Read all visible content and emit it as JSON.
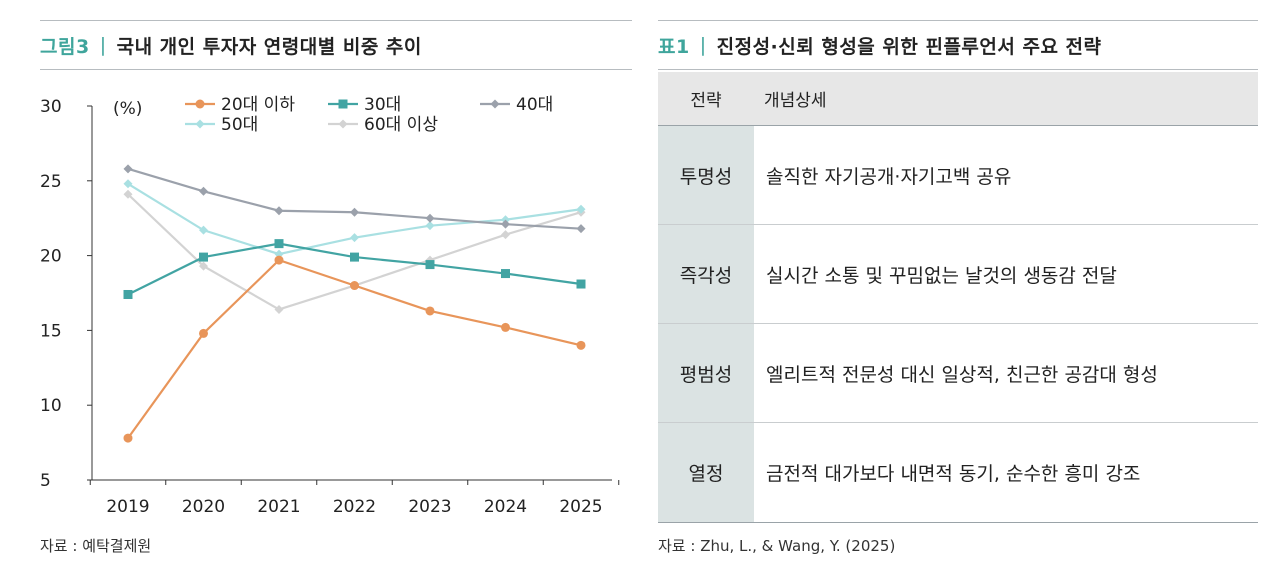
{
  "left": {
    "title_label": "그림3",
    "title_sep": "|",
    "title_text": "국내 개인 투자자 연령대별 비중 추이",
    "source": "자료 : 예탁결제원"
  },
  "right": {
    "title_label": "표1",
    "title_sep": "|",
    "title_text": "진정성·신뢰 형성을 위한 핀플루언서 주요 전략",
    "table": {
      "headers": [
        "전략",
        "개념상세"
      ],
      "rows": [
        {
          "strategy": "투명성",
          "detail": "솔직한 자기공개·자기고백 공유"
        },
        {
          "strategy": "즉각성",
          "detail": "실시간 소통 및 꾸밈없는 날것의 생동감 전달"
        },
        {
          "strategy": "평범성",
          "detail": "엘리트적 전문성 대신 일상적, 친근한 공감대 형성"
        },
        {
          "strategy": "열정",
          "detail": "금전적 대가보다 내면적 동기, 순수한 흥미 강조"
        }
      ]
    },
    "source": "자료 : Zhu, L., & Wang, Y. (2025)"
  },
  "chart_data": {
    "type": "line",
    "title": "",
    "unit_label": "(%)",
    "x": [
      "2019",
      "2020",
      "2021",
      "2022",
      "2023",
      "2024",
      "2025"
    ],
    "ylim": [
      5,
      30
    ],
    "yticks": [
      5,
      10,
      15,
      20,
      25,
      30
    ],
    "grid": false,
    "legend_position": "top",
    "series": [
      {
        "name": "20대 이하",
        "color": "#e8955a",
        "marker": "circle",
        "values": [
          7.8,
          14.8,
          19.7,
          18.0,
          16.3,
          15.2,
          14.0
        ]
      },
      {
        "name": "30대",
        "color": "#42a4a3",
        "marker": "square",
        "values": [
          17.4,
          19.9,
          20.8,
          19.9,
          19.4,
          18.8,
          18.1
        ]
      },
      {
        "name": "40대",
        "color": "#9ba1ab",
        "marker": "diamond",
        "values": [
          25.8,
          24.3,
          23.0,
          22.9,
          22.5,
          22.1,
          21.8
        ]
      },
      {
        "name": "50대",
        "color": "#a9e0e2",
        "marker": "diamond",
        "values": [
          24.8,
          21.7,
          20.1,
          21.2,
          22.0,
          22.4,
          23.1
        ]
      },
      {
        "name": "60대 이상",
        "color": "#d3d3d3",
        "marker": "diamond",
        "values": [
          24.1,
          19.3,
          16.4,
          18.0,
          19.7,
          21.4,
          22.9
        ]
      }
    ]
  }
}
